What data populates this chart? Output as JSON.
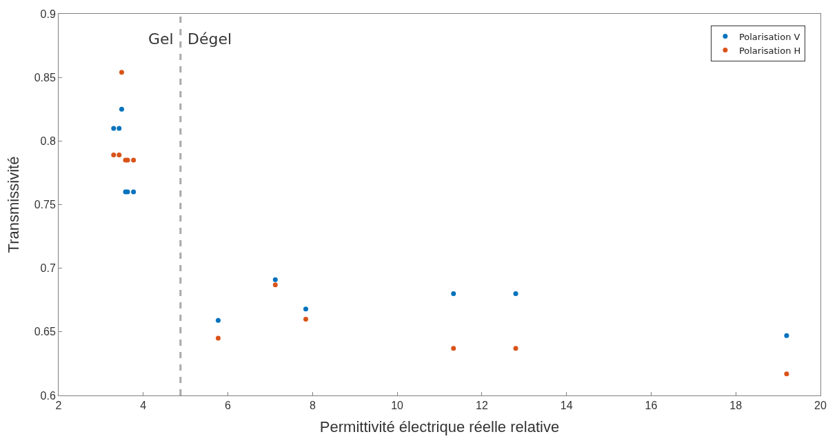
{
  "chart_data": {
    "type": "scatter",
    "xlabel": "Permittivité électrique réelle relative",
    "ylabel": "Transmissivité",
    "xlim": [
      2,
      20
    ],
    "xticks": [
      2,
      4,
      6,
      8,
      10,
      12,
      14,
      16,
      18,
      20
    ],
    "ylim": [
      0.6,
      0.9
    ],
    "yticks": [
      0.6,
      0.65,
      0.7,
      0.75,
      0.8,
      0.85,
      0.9
    ],
    "legend": "top right",
    "marker": "circle",
    "series": [
      {
        "name": "Polarisation V",
        "color": "#0072bd",
        "x": [
          3.3,
          3.43,
          3.49,
          3.58,
          3.63,
          3.77,
          5.77,
          7.12,
          7.84,
          11.33,
          12.8,
          19.2
        ],
        "values": [
          0.81,
          0.81,
          0.825,
          0.76,
          0.76,
          0.76,
          0.659,
          0.691,
          0.668,
          0.68,
          0.68,
          0.647
        ]
      },
      {
        "name": "Polarisation H",
        "color": "#d95319",
        "x": [
          3.3,
          3.43,
          3.49,
          3.58,
          3.63,
          3.77,
          5.77,
          7.12,
          7.84,
          11.33,
          12.8,
          19.2
        ],
        "values": [
          0.789,
          0.789,
          0.854,
          0.785,
          0.785,
          0.785,
          0.645,
          0.687,
          0.66,
          0.637,
          0.637,
          0.617
        ]
      }
    ],
    "ref_lines": [
      {
        "axis": "x",
        "value": 4.88,
        "color": "#a9a9a9",
        "line_style": "dashed"
      }
    ],
    "annotations": [
      {
        "text": "Gel",
        "x": 4.88,
        "y": 0.88
      },
      {
        "text": "Dégel",
        "x": 4.88,
        "y": 0.88
      }
    ]
  }
}
